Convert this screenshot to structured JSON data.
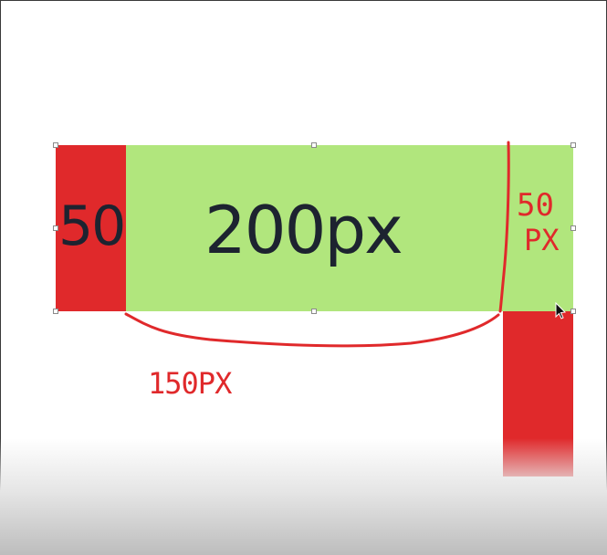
{
  "slide": {
    "labels": {
      "left_box": "50",
      "main_box": "200px"
    },
    "annotations": {
      "bottom_width": "150PX",
      "right_value": "50",
      "right_unit": "PX"
    }
  },
  "colors": {
    "red": "#e0292b",
    "green": "#b1e67d",
    "ink": "#e0292b",
    "text": "#1d2330"
  },
  "icons": {
    "cursor": "mouse-cursor-icon"
  }
}
